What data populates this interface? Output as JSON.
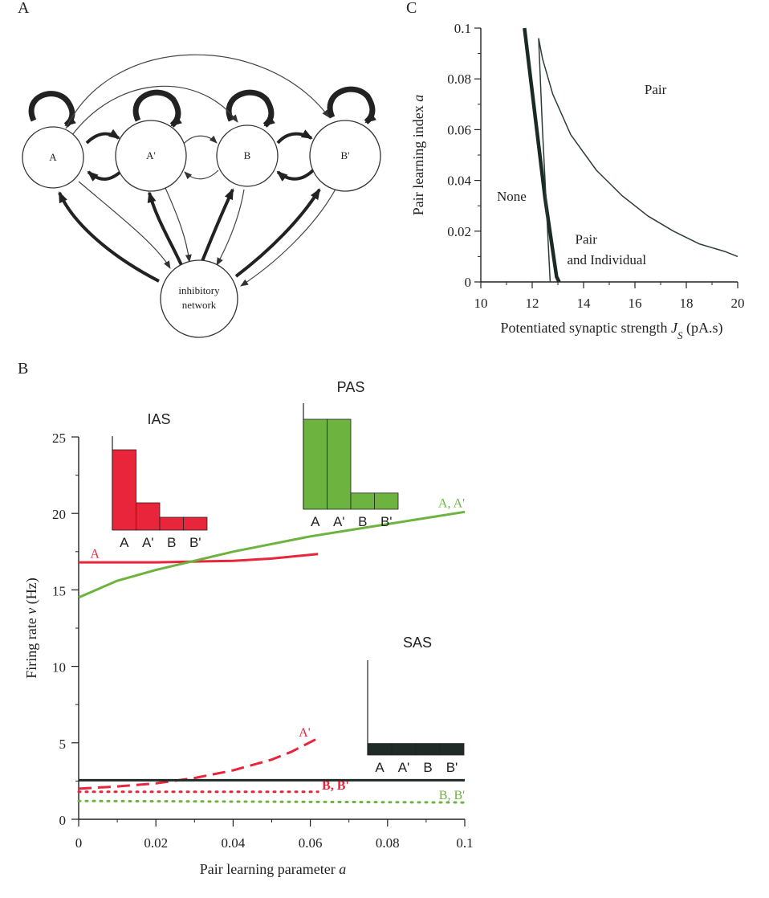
{
  "panel_labels": {
    "a": "A",
    "b": "B",
    "c": "C"
  },
  "diagram": {
    "nodes": [
      {
        "id": "A",
        "label": "A"
      },
      {
        "id": "A'",
        "label": "A'"
      },
      {
        "id": "B",
        "label": "B"
      },
      {
        "id": "B'",
        "label": "B'"
      }
    ],
    "inhibitory": {
      "line1": "inhibitory",
      "line2": "network"
    }
  },
  "colors": {
    "red": "#e8253a",
    "green": "#6db33f",
    "dark": "#1e2b27",
    "axis": "#222222"
  },
  "chart_data": [
    {
      "panel": "C",
      "type": "line",
      "title": "",
      "xlabel": "Potentiated synaptic strength",
      "xlabel_symbol": "J",
      "xlabel_sub": "S",
      "xlabel_unit": "(pA.s)",
      "ylabel": "Pair learning index",
      "ylabel_symbol": "a",
      "xlim": [
        10,
        20
      ],
      "ylim": [
        0,
        0.1
      ],
      "xticks": [
        "10",
        "12",
        "14",
        "16",
        "18",
        "20"
      ],
      "yticks": [
        "0",
        "0.02",
        "0.04",
        "0.06",
        "0.08",
        "0.1"
      ],
      "series": [
        {
          "style": "thick",
          "x": [
            11.7,
            12.5,
            12.95,
            13.05
          ],
          "y": [
            0.1,
            0.033,
            0.002,
            0
          ]
        },
        {
          "style": "thin",
          "x": [
            12.25,
            12.4,
            12.55,
            12.7
          ],
          "y": [
            0.096,
            0.06,
            0.03,
            0
          ]
        },
        {
          "style": "thin",
          "x": [
            12.25,
            12.4,
            12.8,
            13.5,
            14.5,
            15.5,
            16.5,
            17.5,
            18.5,
            19.5,
            20
          ],
          "y": [
            0.096,
            0.088,
            0.074,
            0.058,
            0.044,
            0.034,
            0.026,
            0.02,
            0.015,
            0.012,
            0.01
          ]
        }
      ],
      "annotations": [
        {
          "text": "Pair",
          "x": 16.8,
          "y": 0.074
        },
        {
          "text": "None",
          "x": 11.2,
          "y": 0.032
        },
        {
          "text": "Pair",
          "x": 14.1,
          "y": 0.015
        },
        {
          "text": "and Individual",
          "x": 14.9,
          "y": 0.007
        }
      ]
    },
    {
      "panel": "B",
      "type": "line",
      "title": "",
      "xlabel": "Pair learning parameter",
      "xlabel_symbol": "a",
      "ylabel": "Firing rate",
      "ylabel_symbol": "ν",
      "ylabel_unit": "(Hz)",
      "xlim": [
        0,
        0.1
      ],
      "ylim": [
        0,
        25
      ],
      "xticks": [
        "0",
        "0.02",
        "0.04",
        "0.06",
        "0.08",
        "0.1"
      ],
      "yticks": [
        "0",
        "5",
        "10",
        "15",
        "20",
        "25"
      ],
      "series": [
        {
          "name": "A",
          "color": "red",
          "dash": "solid",
          "x": [
            0,
            0.02,
            0.04,
            0.05,
            0.062
          ],
          "y": [
            16.8,
            16.8,
            16.9,
            17.05,
            17.35
          ]
        },
        {
          "name": "A, A'",
          "color": "green",
          "dash": "solid",
          "x": [
            0,
            0.01,
            0.02,
            0.03,
            0.04,
            0.05,
            0.06,
            0.07,
            0.08,
            0.09,
            0.1
          ],
          "y": [
            14.5,
            15.6,
            16.3,
            16.9,
            17.5,
            18.0,
            18.5,
            18.9,
            19.3,
            19.7,
            20.1
          ]
        },
        {
          "name": "A'",
          "color": "red",
          "dash": "dashed",
          "x": [
            0,
            0.01,
            0.02,
            0.03,
            0.04,
            0.05,
            0.055,
            0.062
          ],
          "y": [
            2.0,
            2.15,
            2.35,
            2.7,
            3.2,
            3.9,
            4.4,
            5.3
          ]
        },
        {
          "name": "B, B'",
          "color": "red",
          "dash": "dotted",
          "x": [
            0,
            0.062
          ],
          "y": [
            1.8,
            1.8
          ]
        },
        {
          "name": "B, B'",
          "color": "green",
          "dash": "dotted",
          "x": [
            0,
            0.1
          ],
          "y": [
            1.2,
            1.1
          ]
        },
        {
          "color": "dark",
          "dash": "solid",
          "x": [
            0,
            0.1
          ],
          "y": [
            2.55,
            2.55
          ]
        }
      ],
      "insets": [
        {
          "title": "IAS",
          "color": "red",
          "categories": [
            "A",
            "A'",
            "B",
            "B'"
          ],
          "values": [
            1.0,
            0.34,
            0.16,
            0.16
          ]
        },
        {
          "title": "PAS",
          "color": "green",
          "categories": [
            "A",
            "A'",
            "B",
            "B'"
          ],
          "values": [
            1.0,
            1.0,
            0.18,
            0.18
          ]
        },
        {
          "title": "SAS",
          "color": "dark",
          "categories": [
            "A",
            "A'",
            "B",
            "B'"
          ],
          "values": [
            0.12,
            0.12,
            0.12,
            0.12
          ]
        }
      ]
    }
  ]
}
